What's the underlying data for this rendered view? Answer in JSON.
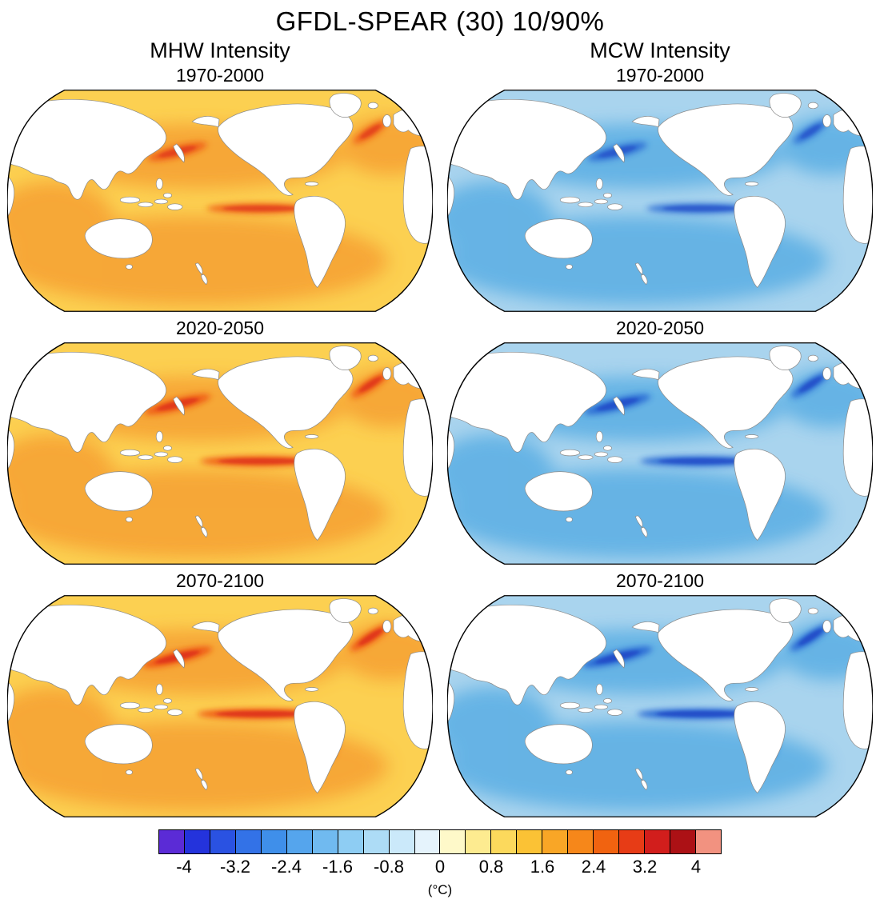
{
  "figure": {
    "title": "GFDL-SPEAR (30) 10/90%"
  },
  "chart_data": {
    "type": "heatmap",
    "title": "GFDL-SPEAR (30) 10/90%",
    "projection": "robinson-pacific-centered",
    "columns": [
      "MHW Intensity",
      "MCW Intensity"
    ],
    "rows": [
      "1970-2000",
      "2020-2050",
      "2070-2100"
    ],
    "colorbar": {
      "unit": "(°C)",
      "ticks": [
        -4,
        -3.2,
        -2.4,
        -1.6,
        -0.8,
        0,
        0.8,
        1.6,
        2.4,
        3.2,
        4
      ],
      "tick_labels": [
        "-4",
        "-3.2",
        "-2.4",
        "-1.6",
        "-0.8",
        "0",
        "0.8",
        "1.6",
        "2.4",
        "3.2",
        "4"
      ],
      "range_with_extensions": [
        -4.4,
        4.4
      ],
      "segment_width": 0.4,
      "colors": [
        "#5B2BD6",
        "#2433DC",
        "#2A52E2",
        "#3372E7",
        "#3F8FEA",
        "#55A5ED",
        "#70BAF0",
        "#8ECDF3",
        "#ADDCF6",
        "#CBE9FA",
        "#E5F3FC",
        "#FEF9C9",
        "#FDEB90",
        "#FCD95C",
        "#FBC235",
        "#F9A626",
        "#F6871A",
        "#F16310",
        "#E73C16",
        "#D21E1C",
        "#AC1115",
        "#F29280"
      ]
    },
    "panels": [
      {
        "column": "MHW Intensity",
        "period": "1970-2000",
        "kind": "mhw",
        "intensity": 0.85,
        "palette": {
          "base": "#FCD051",
          "band": "#F6A336",
          "streak": "#EF5A14",
          "core": "#D8241B"
        }
      },
      {
        "column": "MCW Intensity",
        "period": "1970-2000",
        "kind": "mcw",
        "intensity": 0.85,
        "palette": {
          "base": "#A9D4EE",
          "band": "#5FB0E4",
          "streak": "#2B6BD4",
          "core": "#1C3EC2"
        }
      },
      {
        "column": "MHW Intensity",
        "period": "2020-2050",
        "kind": "mhw",
        "intensity": 0.95,
        "palette": {
          "base": "#FCD051",
          "band": "#F6A336",
          "streak": "#EF5A14",
          "core": "#D8241B"
        }
      },
      {
        "column": "MCW Intensity",
        "period": "2020-2050",
        "kind": "mcw",
        "intensity": 0.95,
        "palette": {
          "base": "#A9D4EE",
          "band": "#5FB0E4",
          "streak": "#2B6BD4",
          "core": "#1C3EC2"
        }
      },
      {
        "column": "MHW Intensity",
        "period": "2070-2100",
        "kind": "mhw",
        "intensity": 1.0,
        "palette": {
          "base": "#FCD051",
          "band": "#F6A336",
          "streak": "#EF5A14",
          "core": "#D8241B"
        }
      },
      {
        "column": "MCW Intensity",
        "period": "2070-2100",
        "kind": "mcw",
        "intensity": 1.0,
        "palette": {
          "base": "#A9D4EE",
          "band": "#5FB0E4",
          "streak": "#2B6BD4",
          "core": "#1C3EC2"
        }
      }
    ]
  }
}
